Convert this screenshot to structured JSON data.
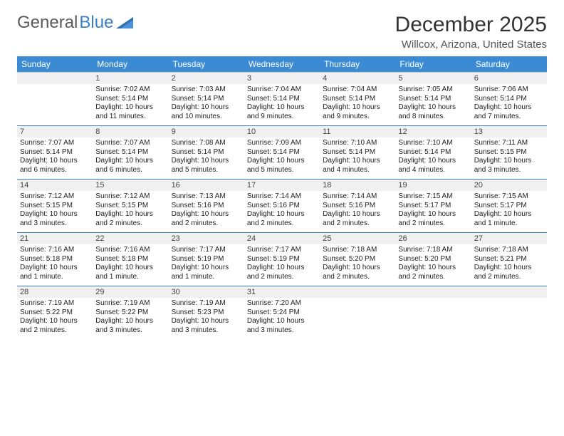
{
  "logo": {
    "word1": "General",
    "word2": "Blue"
  },
  "title": "December 2025",
  "location": "Willcox, Arizona, United States",
  "colors": {
    "header_bg": "#3b8bd4",
    "header_text": "#ffffff",
    "week_divider": "#3b7fc4",
    "daynum_bg": "#f0f0f0",
    "text": "#222222",
    "logo_gray": "#5a5a5a",
    "logo_blue": "#3b7fc4"
  },
  "typography": {
    "title_fontsize": 30,
    "location_fontsize": 15,
    "dayhead_fontsize": 12,
    "daynum_fontsize": 11,
    "body_fontsize": 10
  },
  "day_headers": [
    "Sunday",
    "Monday",
    "Tuesday",
    "Wednesday",
    "Thursday",
    "Friday",
    "Saturday"
  ],
  "weeks": [
    [
      {
        "n": "",
        "lines": [
          "",
          "",
          "",
          ""
        ]
      },
      {
        "n": "1",
        "lines": [
          "Sunrise: 7:02 AM",
          "Sunset: 5:14 PM",
          "Daylight: 10 hours",
          "and 11 minutes."
        ]
      },
      {
        "n": "2",
        "lines": [
          "Sunrise: 7:03 AM",
          "Sunset: 5:14 PM",
          "Daylight: 10 hours",
          "and 10 minutes."
        ]
      },
      {
        "n": "3",
        "lines": [
          "Sunrise: 7:04 AM",
          "Sunset: 5:14 PM",
          "Daylight: 10 hours",
          "and 9 minutes."
        ]
      },
      {
        "n": "4",
        "lines": [
          "Sunrise: 7:04 AM",
          "Sunset: 5:14 PM",
          "Daylight: 10 hours",
          "and 9 minutes."
        ]
      },
      {
        "n": "5",
        "lines": [
          "Sunrise: 7:05 AM",
          "Sunset: 5:14 PM",
          "Daylight: 10 hours",
          "and 8 minutes."
        ]
      },
      {
        "n": "6",
        "lines": [
          "Sunrise: 7:06 AM",
          "Sunset: 5:14 PM",
          "Daylight: 10 hours",
          "and 7 minutes."
        ]
      }
    ],
    [
      {
        "n": "7",
        "lines": [
          "Sunrise: 7:07 AM",
          "Sunset: 5:14 PM",
          "Daylight: 10 hours",
          "and 6 minutes."
        ]
      },
      {
        "n": "8",
        "lines": [
          "Sunrise: 7:07 AM",
          "Sunset: 5:14 PM",
          "Daylight: 10 hours",
          "and 6 minutes."
        ]
      },
      {
        "n": "9",
        "lines": [
          "Sunrise: 7:08 AM",
          "Sunset: 5:14 PM",
          "Daylight: 10 hours",
          "and 5 minutes."
        ]
      },
      {
        "n": "10",
        "lines": [
          "Sunrise: 7:09 AM",
          "Sunset: 5:14 PM",
          "Daylight: 10 hours",
          "and 5 minutes."
        ]
      },
      {
        "n": "11",
        "lines": [
          "Sunrise: 7:10 AM",
          "Sunset: 5:14 PM",
          "Daylight: 10 hours",
          "and 4 minutes."
        ]
      },
      {
        "n": "12",
        "lines": [
          "Sunrise: 7:10 AM",
          "Sunset: 5:14 PM",
          "Daylight: 10 hours",
          "and 4 minutes."
        ]
      },
      {
        "n": "13",
        "lines": [
          "Sunrise: 7:11 AM",
          "Sunset: 5:15 PM",
          "Daylight: 10 hours",
          "and 3 minutes."
        ]
      }
    ],
    [
      {
        "n": "14",
        "lines": [
          "Sunrise: 7:12 AM",
          "Sunset: 5:15 PM",
          "Daylight: 10 hours",
          "and 3 minutes."
        ]
      },
      {
        "n": "15",
        "lines": [
          "Sunrise: 7:12 AM",
          "Sunset: 5:15 PM",
          "Daylight: 10 hours",
          "and 2 minutes."
        ]
      },
      {
        "n": "16",
        "lines": [
          "Sunrise: 7:13 AM",
          "Sunset: 5:16 PM",
          "Daylight: 10 hours",
          "and 2 minutes."
        ]
      },
      {
        "n": "17",
        "lines": [
          "Sunrise: 7:14 AM",
          "Sunset: 5:16 PM",
          "Daylight: 10 hours",
          "and 2 minutes."
        ]
      },
      {
        "n": "18",
        "lines": [
          "Sunrise: 7:14 AM",
          "Sunset: 5:16 PM",
          "Daylight: 10 hours",
          "and 2 minutes."
        ]
      },
      {
        "n": "19",
        "lines": [
          "Sunrise: 7:15 AM",
          "Sunset: 5:17 PM",
          "Daylight: 10 hours",
          "and 2 minutes."
        ]
      },
      {
        "n": "20",
        "lines": [
          "Sunrise: 7:15 AM",
          "Sunset: 5:17 PM",
          "Daylight: 10 hours",
          "and 1 minute."
        ]
      }
    ],
    [
      {
        "n": "21",
        "lines": [
          "Sunrise: 7:16 AM",
          "Sunset: 5:18 PM",
          "Daylight: 10 hours",
          "and 1 minute."
        ]
      },
      {
        "n": "22",
        "lines": [
          "Sunrise: 7:16 AM",
          "Sunset: 5:18 PM",
          "Daylight: 10 hours",
          "and 1 minute."
        ]
      },
      {
        "n": "23",
        "lines": [
          "Sunrise: 7:17 AM",
          "Sunset: 5:19 PM",
          "Daylight: 10 hours",
          "and 1 minute."
        ]
      },
      {
        "n": "24",
        "lines": [
          "Sunrise: 7:17 AM",
          "Sunset: 5:19 PM",
          "Daylight: 10 hours",
          "and 2 minutes."
        ]
      },
      {
        "n": "25",
        "lines": [
          "Sunrise: 7:18 AM",
          "Sunset: 5:20 PM",
          "Daylight: 10 hours",
          "and 2 minutes."
        ]
      },
      {
        "n": "26",
        "lines": [
          "Sunrise: 7:18 AM",
          "Sunset: 5:20 PM",
          "Daylight: 10 hours",
          "and 2 minutes."
        ]
      },
      {
        "n": "27",
        "lines": [
          "Sunrise: 7:18 AM",
          "Sunset: 5:21 PM",
          "Daylight: 10 hours",
          "and 2 minutes."
        ]
      }
    ],
    [
      {
        "n": "28",
        "lines": [
          "Sunrise: 7:19 AM",
          "Sunset: 5:22 PM",
          "Daylight: 10 hours",
          "and 2 minutes."
        ]
      },
      {
        "n": "29",
        "lines": [
          "Sunrise: 7:19 AM",
          "Sunset: 5:22 PM",
          "Daylight: 10 hours",
          "and 3 minutes."
        ]
      },
      {
        "n": "30",
        "lines": [
          "Sunrise: 7:19 AM",
          "Sunset: 5:23 PM",
          "Daylight: 10 hours",
          "and 3 minutes."
        ]
      },
      {
        "n": "31",
        "lines": [
          "Sunrise: 7:20 AM",
          "Sunset: 5:24 PM",
          "Daylight: 10 hours",
          "and 3 minutes."
        ]
      },
      {
        "n": "",
        "lines": [
          "",
          "",
          "",
          ""
        ]
      },
      {
        "n": "",
        "lines": [
          "",
          "",
          "",
          ""
        ]
      },
      {
        "n": "",
        "lines": [
          "",
          "",
          "",
          ""
        ]
      }
    ]
  ]
}
